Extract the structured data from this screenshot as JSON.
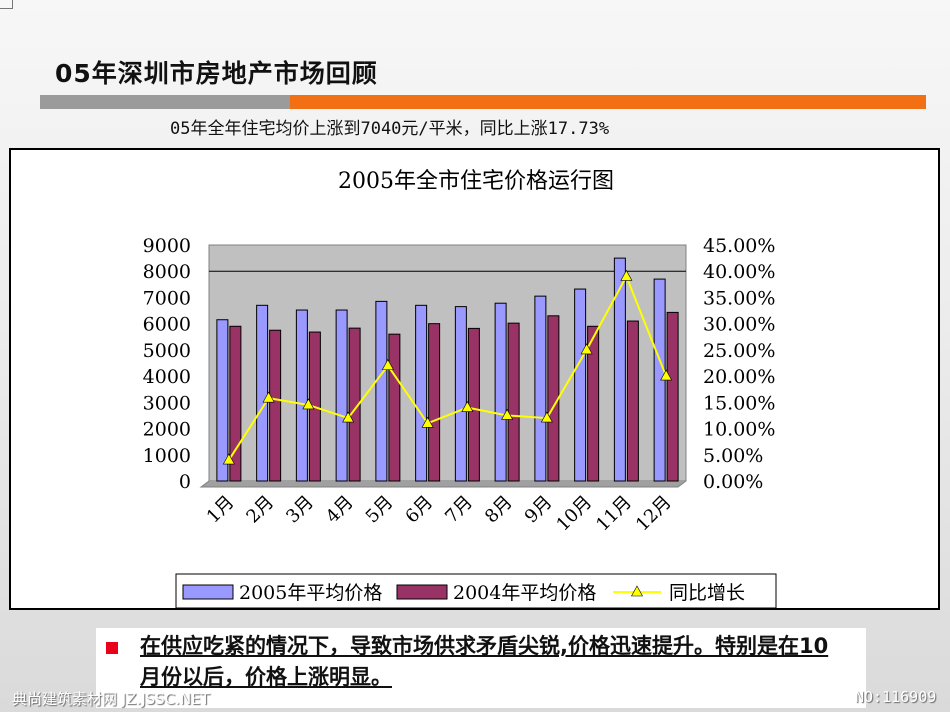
{
  "slide": {
    "title": "05年深圳市房地产市场回顾",
    "subtitle": "05年全年住宅均价上涨到7040元/平米，同比上涨17.73%",
    "note": "在供应吃紧的情况下，导致市场供求矛盾尖锐,价格迅速提升。特别是在10月份以后，价格上涨明显。",
    "watermark_left": "典尚建筑素材网 JZ.JSSC.NET",
    "watermark_right": "NO:116909"
  },
  "colors": {
    "accent_orange": "#f26f14",
    "bar_2005": "#9999ff",
    "bar_2004": "#993366",
    "line_yoy": "#ffff00",
    "plot_bg": "#c0c0c0",
    "note_marker": "#e8001c"
  },
  "chart_data": {
    "type": "bar",
    "title": "2005年全市住宅价格运行图",
    "categories": [
      "1月",
      "2月",
      "3月",
      "4月",
      "5月",
      "6月",
      "7月",
      "8月",
      "9月",
      "10月",
      "11月",
      "12月"
    ],
    "series": [
      {
        "name": "2005年平均价格",
        "kind": "bar",
        "axis": "left",
        "values": [
          6150,
          6700,
          6520,
          6520,
          6850,
          6700,
          6650,
          6780,
          7050,
          7320,
          8500,
          7700
        ]
      },
      {
        "name": "2004年平均价格",
        "kind": "bar",
        "axis": "left",
        "values": [
          5900,
          5750,
          5680,
          5830,
          5600,
          6000,
          5820,
          6020,
          6300,
          5900,
          6100,
          6430
        ]
      },
      {
        "name": "同比增长",
        "kind": "line",
        "axis": "right",
        "values": [
          0.04,
          0.158,
          0.145,
          0.12,
          0.22,
          0.11,
          0.14,
          0.125,
          0.12,
          0.25,
          0.39,
          0.2
        ]
      }
    ],
    "ylim": [
      0,
      9000
    ],
    "yticks": [
      0,
      1000,
      2000,
      3000,
      4000,
      5000,
      6000,
      7000,
      8000,
      9000
    ],
    "y2lim": [
      0,
      0.45
    ],
    "y2ticks": [
      "0.00%",
      "5.00%",
      "10.00%",
      "15.00%",
      "20.00%",
      "25.00%",
      "30.00%",
      "35.00%",
      "40.00%",
      "45.00%"
    ],
    "grid": "major horizontal at 8000",
    "legend": "bottom"
  }
}
